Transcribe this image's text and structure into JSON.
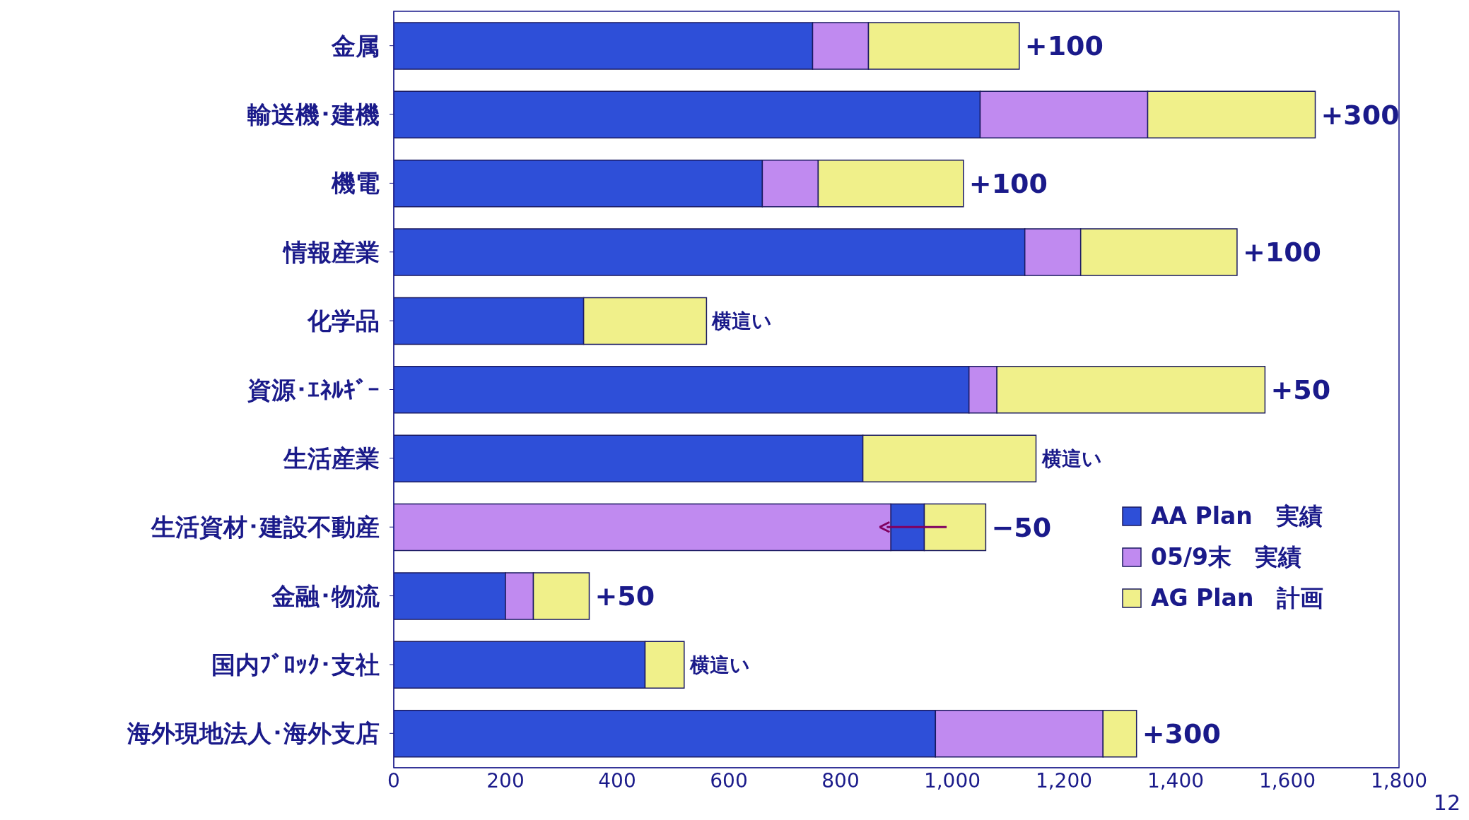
{
  "chart_data": {
    "type": "bar",
    "orientation": "horizontal",
    "categories": [
      "金属",
      "輸送機･建機",
      "機電",
      "情報産業",
      "化学品",
      "資源･ｴﾈﾙｷﾞｰ",
      "生活産業",
      "生活資材･建設不動産",
      "金融･物流",
      "国内ﾌﾞﾛｯｸ･支社",
      "海外現地法人･海外支店"
    ],
    "series": [
      {
        "name": "AA Plan　実績",
        "color": "#2e4fd8",
        "base": [
          0,
          0,
          0,
          0,
          0,
          0,
          0,
          890,
          0,
          0,
          0
        ],
        "values": [
          750,
          1050,
          660,
          1130,
          340,
          1030,
          840,
          60,
          200,
          450,
          970
        ]
      },
      {
        "name": "05/9末　実績",
        "color": "#c08af0",
        "base": [
          750,
          1050,
          660,
          1130,
          null,
          1030,
          null,
          0,
          200,
          null,
          970
        ],
        "values": [
          100,
          300,
          100,
          100,
          null,
          50,
          null,
          890,
          50,
          null,
          300
        ]
      },
      {
        "name": "AG Plan　計画",
        "color": "#f0f08a",
        "base": [
          850,
          1350,
          760,
          1230,
          340,
          1080,
          840,
          950,
          250,
          450,
          1270
        ],
        "values": [
          270,
          300,
          260,
          280,
          220,
          480,
          310,
          110,
          100,
          70,
          60
        ]
      }
    ],
    "xlim": [
      0,
      1800
    ],
    "xticks": [
      0,
      {
        "value": 200,
        "label": "200"
      },
      {
        "value": 400,
        "label": "400"
      },
      {
        "value": 600,
        "label": "600"
      },
      {
        "value": 800,
        "label": "800"
      },
      {
        "value": 1000,
        "label": "1,000"
      },
      {
        "value": 1200,
        "label": "1,200"
      },
      {
        "value": 1400,
        "label": "1,400"
      },
      {
        "value": 1600,
        "label": "1,600"
      },
      {
        "value": 1800,
        "label": "1,800"
      }
    ],
    "legend": "right",
    "grid": false,
    "annotations": [
      {
        "text": "+100",
        "x": 1120,
        "y": "金属"
      },
      {
        "text": "+300",
        "x": 1650,
        "y": "輸送機･建機"
      },
      {
        "text": "+100",
        "x": 1020,
        "y": "機電"
      },
      {
        "text": "+100",
        "x": 1510,
        "y": "情報産業"
      },
      {
        "text": "横這い",
        "x": 560,
        "y": "化学品"
      },
      {
        "text": "+50",
        "x": 1560,
        "y": "資源･ｴﾈﾙｷﾞｰ"
      },
      {
        "text": "横這い",
        "x": 1150,
        "y": "生活産業"
      },
      {
        "text": "−50",
        "x": 1060,
        "y": "生活資材･建設不動産"
      },
      {
        "text": "+50",
        "x": 350,
        "y": "金融･物流"
      },
      {
        "text": "横這い",
        "x": 520,
        "y": "国内ﾌﾞﾛｯｸ･支社"
      },
      {
        "text": "+300",
        "x": 1330,
        "y": "海外現地法人･海外支店"
      },
      "12"
    ]
  }
}
